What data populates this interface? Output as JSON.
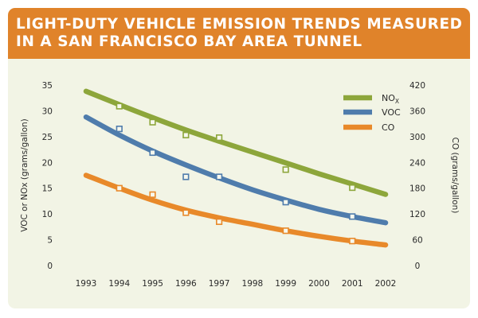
{
  "chart_data": {
    "type": "line",
    "title": "LIGHT-DUTY VEHICLE EMISSION TRENDS MEASURED IN A SAN FRANCISCO BAY AREA TUNNEL",
    "x": [
      1993,
      1994,
      1995,
      1996,
      1997,
      1998,
      1999,
      2000,
      2001,
      2002
    ],
    "x_tick_labels": [
      "1993",
      "1994",
      "1995",
      "1996",
      "1997",
      "1998",
      "1999",
      "2000",
      "2001",
      "2002"
    ],
    "xlim": [
      1993,
      2002
    ],
    "ylabel": "VOC or NOx (grams/gallon)",
    "ylim": [
      0,
      35
    ],
    "y_ticks": [
      0,
      5,
      10,
      15,
      20,
      25,
      30,
      35
    ],
    "y2label": "CO (grams/gallon)",
    "y2lim": [
      0,
      420
    ],
    "y2_ticks": [
      0,
      60,
      120,
      180,
      240,
      300,
      360,
      420
    ],
    "grid": false,
    "legend_position": "top-right",
    "series": [
      {
        "name": "NO",
        "name_subscript": "X",
        "axis": "left",
        "color": "#8da63b",
        "trend": [
          [
            1993,
            33.8
          ],
          [
            1994,
            31.2
          ],
          [
            1995,
            28.7
          ],
          [
            1996,
            26.3
          ],
          [
            1997,
            24.1
          ],
          [
            1998,
            22.0
          ],
          [
            1999,
            19.9
          ],
          [
            2000,
            17.8
          ],
          [
            2001,
            15.8
          ],
          [
            2002,
            13.8
          ]
        ],
        "measured": [
          [
            1994,
            30.9
          ],
          [
            1995,
            27.8
          ],
          [
            1996,
            25.3
          ],
          [
            1997,
            24.8
          ],
          [
            1999,
            18.6
          ],
          [
            2001,
            15.1
          ]
        ]
      },
      {
        "name": "VOC",
        "axis": "left",
        "color": "#4f7cac",
        "trend": [
          [
            1993,
            28.8
          ],
          [
            1994,
            25.3
          ],
          [
            1995,
            22.2
          ],
          [
            1996,
            19.5
          ],
          [
            1997,
            17.0
          ],
          [
            1998,
            14.7
          ],
          [
            1999,
            12.7
          ],
          [
            2000,
            10.9
          ],
          [
            2001,
            9.5
          ],
          [
            2002,
            8.3
          ]
        ],
        "measured": [
          [
            1994,
            26.5
          ],
          [
            1995,
            21.9
          ],
          [
            1996,
            17.2
          ],
          [
            1997,
            17.2
          ],
          [
            1999,
            12.3
          ],
          [
            2001,
            9.5
          ]
        ]
      },
      {
        "name": "CO",
        "axis": "right",
        "color": "#e8892a",
        "trend": [
          [
            1993,
            210
          ],
          [
            1994,
            180
          ],
          [
            1995,
            152
          ],
          [
            1996,
            129
          ],
          [
            1997,
            111
          ],
          [
            1998,
            96
          ],
          [
            1999,
            81
          ],
          [
            2000,
            68
          ],
          [
            2001,
            57
          ],
          [
            2002,
            48
          ]
        ],
        "measured": [
          [
            1994,
            180
          ],
          [
            1995,
            165
          ],
          [
            1996,
            123
          ],
          [
            1997,
            102
          ],
          [
            1999,
            81
          ],
          [
            2001,
            57
          ]
        ]
      }
    ]
  }
}
